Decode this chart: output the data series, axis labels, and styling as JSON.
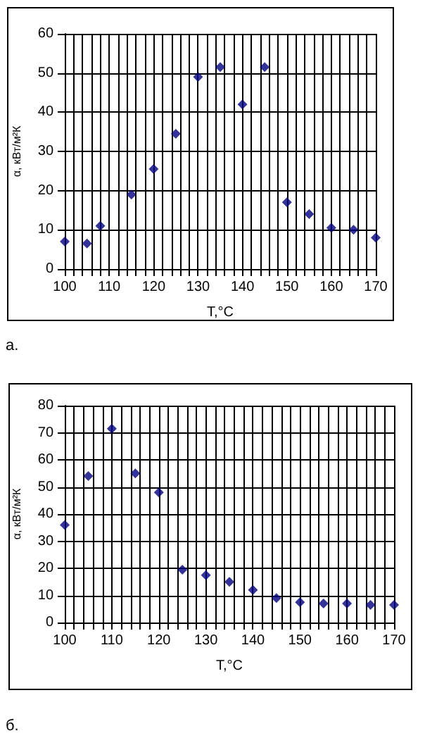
{
  "chart_data": [
    {
      "type": "scatter",
      "xlabel": "T,°C",
      "ylabel": "α, кВт/м²К",
      "annotations": [
        "а."
      ],
      "marker": "diamond",
      "grid": true,
      "x": [
        100,
        105,
        108,
        115,
        120,
        125,
        130,
        135,
        140,
        145,
        150,
        155,
        160,
        165,
        170
      ],
      "series": [
        {
          "color": "#000080",
          "values": [
            7,
            6.5,
            11,
            19,
            25.5,
            34.5,
            49,
            51.5,
            42,
            51.5,
            17,
            14,
            10.5,
            10,
            8
          ]
        }
      ],
      "xlim": [
        100,
        170
      ],
      "xticks": [
        100,
        {
          "value": 102,
          "label": null
        },
        {
          "value": 104,
          "label": null
        },
        {
          "value": 106,
          "label": null
        },
        {
          "value": 108,
          "label": null
        },
        110,
        {
          "value": 112,
          "label": null
        },
        {
          "value": 114,
          "label": null
        },
        {
          "value": 116,
          "label": null
        },
        {
          "value": 118,
          "label": null
        },
        120,
        {
          "value": 122,
          "label": null
        },
        {
          "value": 124,
          "label": null
        },
        {
          "value": 126,
          "label": null
        },
        {
          "value": 128,
          "label": null
        },
        130,
        {
          "value": 132,
          "label": null
        },
        {
          "value": 134,
          "label": null
        },
        {
          "value": 136,
          "label": null
        },
        {
          "value": 138,
          "label": null
        },
        140,
        {
          "value": 142,
          "label": null
        },
        {
          "value": 144,
          "label": null
        },
        {
          "value": 146,
          "label": null
        },
        {
          "value": 148,
          "label": null
        },
        150,
        {
          "value": 152,
          "label": null
        },
        {
          "value": 154,
          "label": null
        },
        {
          "value": 156,
          "label": null
        },
        {
          "value": 158,
          "label": null
        },
        160,
        {
          "value": 162,
          "label": null
        },
        {
          "value": 164,
          "label": null
        },
        {
          "value": 166,
          "label": null
        },
        {
          "value": 168,
          "label": null
        },
        170
      ],
      "ylim": [
        0,
        60
      ],
      "yticks": [
        0,
        10,
        20,
        30,
        40,
        50,
        60
      ]
    },
    {
      "type": "scatter",
      "xlabel": "T,°C",
      "ylabel": "α, кВт/м²К",
      "annotations": [
        "б."
      ],
      "marker": "diamond",
      "grid": true,
      "x": [
        100,
        105,
        110,
        115,
        120,
        125,
        130,
        135,
        140,
        145,
        150,
        155,
        160,
        165,
        170
      ],
      "series": [
        {
          "color": "#000080",
          "values": [
            36,
            54,
            71.5,
            55,
            48,
            19.5,
            17.5,
            15,
            12,
            9,
            7.5,
            7,
            7,
            6.5,
            6.5
          ]
        }
      ],
      "xlim": [
        100,
        170
      ],
      "xticks": [
        100,
        {
          "value": 102,
          "label": null
        },
        {
          "value": 104,
          "label": null
        },
        {
          "value": 106,
          "label": null
        },
        {
          "value": 108,
          "label": null
        },
        110,
        {
          "value": 112,
          "label": null
        },
        {
          "value": 114,
          "label": null
        },
        {
          "value": 116,
          "label": null
        },
        {
          "value": 118,
          "label": null
        },
        120,
        {
          "value": 122,
          "label": null
        },
        {
          "value": 124,
          "label": null
        },
        {
          "value": 126,
          "label": null
        },
        {
          "value": 128,
          "label": null
        },
        130,
        {
          "value": 132,
          "label": null
        },
        {
          "value": 134,
          "label": null
        },
        {
          "value": 136,
          "label": null
        },
        {
          "value": 138,
          "label": null
        },
        140,
        {
          "value": 142,
          "label": null
        },
        {
          "value": 144,
          "label": null
        },
        {
          "value": 146,
          "label": null
        },
        {
          "value": 148,
          "label": null
        },
        150,
        {
          "value": 152,
          "label": null
        },
        {
          "value": 154,
          "label": null
        },
        {
          "value": 156,
          "label": null
        },
        {
          "value": 158,
          "label": null
        },
        160,
        {
          "value": 162,
          "label": null
        },
        {
          "value": 164,
          "label": null
        },
        {
          "value": 166,
          "label": null
        },
        {
          "value": 168,
          "label": null
        },
        170
      ],
      "ylim": [
        0,
        80
      ],
      "yticks": [
        0,
        10,
        20,
        30,
        40,
        50,
        60,
        70,
        80
      ]
    }
  ]
}
